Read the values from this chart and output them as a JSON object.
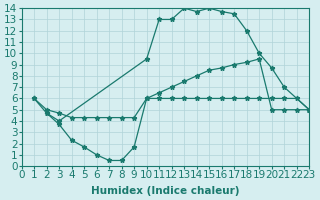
{
  "line1_x": [
    1,
    2,
    3,
    10,
    11,
    12,
    13,
    14,
    15,
    16,
    17,
    18,
    19,
    20,
    21,
    23
  ],
  "line1_y": [
    6,
    4.7,
    4.0,
    9.5,
    13,
    13,
    14,
    13.7,
    14,
    13.7,
    13.5,
    12,
    10,
    8.7,
    7,
    5
  ],
  "line2_x": [
    1,
    2,
    3,
    4,
    5,
    6,
    7,
    8,
    9,
    10,
    11,
    12,
    13,
    14,
    15,
    16,
    17,
    18,
    19,
    20,
    21,
    22,
    23
  ],
  "line2_y": [
    6,
    5.0,
    4.7,
    4.3,
    4.3,
    4.3,
    4.3,
    4.3,
    4.3,
    6.0,
    6.5,
    7.0,
    7.5,
    8.0,
    8.5,
    8.7,
    9.0,
    9.2,
    9.5,
    5.0,
    5.0,
    5.0,
    5.0
  ],
  "line3_x": [
    2,
    3,
    4,
    5,
    6,
    7,
    8,
    9,
    10,
    11,
    12,
    13,
    14,
    15,
    16,
    17,
    18,
    19,
    20,
    21,
    22,
    23
  ],
  "line3_y": [
    4.7,
    3.7,
    2.3,
    1.7,
    1.0,
    0.5,
    0.5,
    1.7,
    6.0,
    6.0,
    6.0,
    6.0,
    6.0,
    6.0,
    6.0,
    6.0,
    6.0,
    6.0,
    6.0,
    6.0,
    6.0,
    5.0
  ],
  "color": "#1a7a6e",
  "bg_color": "#d6eef0",
  "grid_color": "#b0d4d8",
  "xlabel": "Humidex (Indice chaleur)",
  "xlim": [
    0,
    23
  ],
  "ylim": [
    0,
    14
  ],
  "xticks": [
    0,
    1,
    2,
    3,
    4,
    5,
    6,
    7,
    8,
    9,
    10,
    11,
    12,
    13,
    14,
    15,
    16,
    17,
    18,
    19,
    20,
    21,
    22,
    23
  ],
  "yticks": [
    0,
    1,
    2,
    3,
    4,
    5,
    6,
    7,
    8,
    9,
    10,
    11,
    12,
    13,
    14
  ],
  "fontsize": 7.5
}
